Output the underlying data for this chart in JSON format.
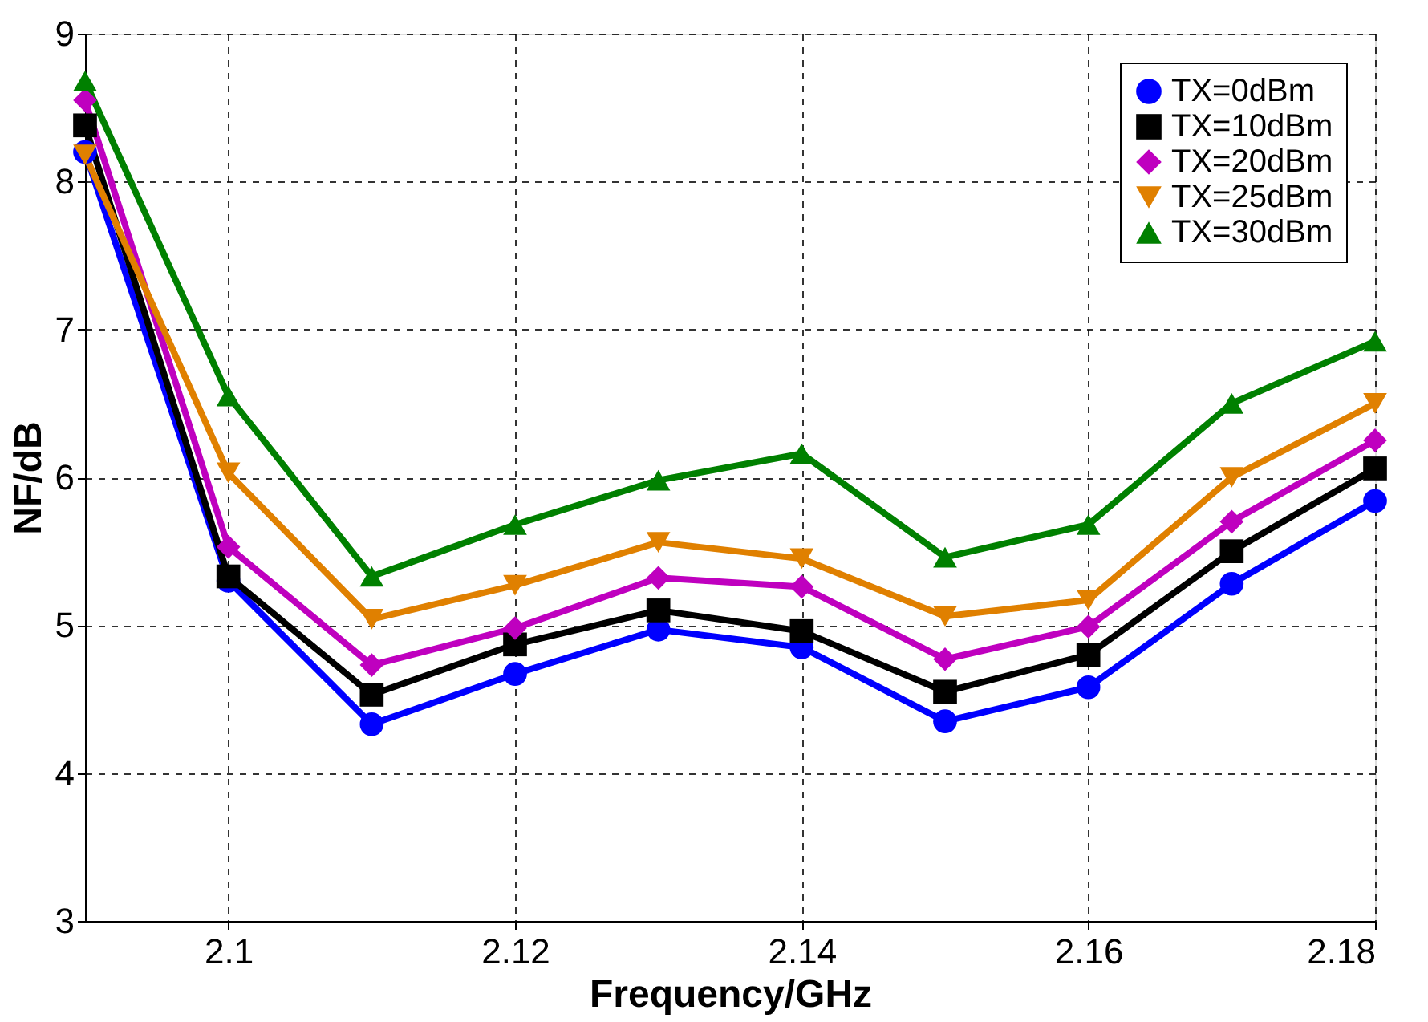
{
  "chart_data": {
    "type": "line",
    "xlabel": "Frequency/GHz",
    "ylabel": "NF/dB",
    "x": [
      2.09,
      2.1,
      2.11,
      2.12,
      2.13,
      2.14,
      2.15,
      2.16,
      2.17,
      2.18
    ],
    "xlim": [
      2.09,
      2.18
    ],
    "xticks": [
      2.1,
      2.12,
      2.14,
      2.16,
      2.18
    ],
    "ylim": [
      3,
      9
    ],
    "yticks": [
      3,
      4,
      5,
      6,
      7,
      8,
      9
    ],
    "grid": true,
    "legend": "top right",
    "line_style": "solid",
    "series": [
      {
        "name": "TX=0dBm",
        "color": "#0000ff",
        "marker": "circle",
        "values": [
          8.2,
          5.3,
          4.33,
          4.67,
          4.97,
          4.85,
          4.35,
          4.58,
          5.28,
          5.84
        ]
      },
      {
        "name": "TX=10dBm",
        "color": "#000000",
        "marker": "square",
        "values": [
          8.38,
          5.33,
          4.53,
          4.87,
          5.1,
          4.96,
          4.55,
          4.8,
          5.5,
          6.06
        ]
      },
      {
        "name": "TX=20dBm",
        "color": "#bf00bf",
        "marker": "diamond",
        "values": [
          8.55,
          5.53,
          4.73,
          4.98,
          5.32,
          5.26,
          4.77,
          4.99,
          5.7,
          6.25
        ]
      },
      {
        "name": "TX=25dBm",
        "color": "#e08000",
        "marker": "triangle-down",
        "values": [
          8.18,
          6.03,
          5.04,
          5.27,
          5.56,
          5.45,
          5.06,
          5.17,
          6.0,
          6.5
        ]
      },
      {
        "name": "TX=30dBm",
        "color": "#008000",
        "marker": "triangle",
        "values": [
          8.68,
          6.55,
          5.33,
          5.68,
          5.98,
          6.16,
          5.46,
          5.68,
          6.5,
          6.92
        ]
      }
    ]
  }
}
